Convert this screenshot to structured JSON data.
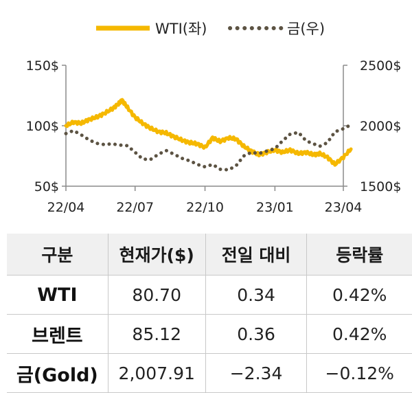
{
  "chart_data": {
    "type": "line",
    "x_ticks": [
      "22/04",
      "22/07",
      "22/10",
      "23/01",
      "23/04"
    ],
    "y_left": {
      "ticks": [
        "150$",
        "100$",
        "50$"
      ],
      "ylim": [
        50,
        150
      ]
    },
    "y_right": {
      "ticks": [
        "2500$",
        "2000$",
        "1500$"
      ],
      "ylim": [
        1500,
        2500
      ]
    },
    "legend_position": "top",
    "grid": false,
    "series": [
      {
        "name": "WTI(좌)",
        "axis": "left",
        "color": "#f5b800",
        "style": "solid",
        "x": [
          "2022-04-01",
          "2022-04-11",
          "2022-04-21",
          "2022-05-01",
          "2022-05-11",
          "2022-05-21",
          "2022-06-01",
          "2022-06-09",
          "2022-06-14",
          "2022-06-21",
          "2022-07-01",
          "2022-07-11",
          "2022-07-21",
          "2022-08-01",
          "2022-08-11",
          "2022-08-21",
          "2022-09-01",
          "2022-09-11",
          "2022-09-21",
          "2022-10-01",
          "2022-10-11",
          "2022-10-21",
          "2022-11-01",
          "2022-11-11",
          "2022-11-21",
          "2022-12-01",
          "2022-12-11",
          "2022-12-21",
          "2023-01-01",
          "2023-01-11",
          "2023-01-21",
          "2023-02-01",
          "2023-02-11",
          "2023-02-21",
          "2023-03-01",
          "2023-03-11",
          "2023-03-21",
          "2023-04-01",
          "2023-04-11"
        ],
        "values": [
          100,
          103,
          102,
          105,
          107,
          110,
          114,
          118,
          121,
          115,
          107,
          102,
          98,
          95,
          94,
          91,
          88,
          86,
          85,
          82,
          90,
          87,
          90,
          89,
          83,
          79,
          76,
          78,
          80,
          78,
          80,
          77,
          78,
          76,
          77,
          74,
          68,
          74,
          80.7
        ]
      },
      {
        "name": "금(우)",
        "axis": "right",
        "color": "#5c5343",
        "style": "dotted",
        "x": [
          "2022-04-01",
          "2022-04-11",
          "2022-04-21",
          "2022-05-01",
          "2022-05-11",
          "2022-05-21",
          "2022-06-01",
          "2022-06-11",
          "2022-06-21",
          "2022-07-01",
          "2022-07-11",
          "2022-07-21",
          "2022-08-01",
          "2022-08-11",
          "2022-08-21",
          "2022-09-01",
          "2022-09-11",
          "2022-09-21",
          "2022-10-01",
          "2022-10-11",
          "2022-10-21",
          "2022-11-01",
          "2022-11-11",
          "2022-11-21",
          "2022-12-01",
          "2022-12-11",
          "2022-12-21",
          "2023-01-01",
          "2023-01-11",
          "2023-01-21",
          "2023-02-01",
          "2023-02-11",
          "2023-02-21",
          "2023-03-01",
          "2023-03-11",
          "2023-03-21",
          "2023-04-01",
          "2023-04-11"
        ],
        "values": [
          1935,
          1960,
          1925,
          1885,
          1855,
          1845,
          1850,
          1840,
          1835,
          1780,
          1725,
          1720,
          1765,
          1795,
          1765,
          1730,
          1710,
          1680,
          1660,
          1680,
          1640,
          1635,
          1670,
          1750,
          1780,
          1770,
          1790,
          1810,
          1875,
          1930,
          1945,
          1875,
          1850,
          1830,
          1860,
          1950,
          1975,
          2007.91
        ]
      }
    ]
  },
  "table": {
    "headers": [
      "구분",
      "현재가($)",
      "전일 대비",
      "등락률"
    ],
    "rows": [
      [
        "WTI",
        "80.70",
        "0.34",
        "0.42%"
      ],
      [
        "브렌트",
        "85.12",
        "0.36",
        "0.42%"
      ],
      [
        "금(Gold)",
        "2,007.91",
        "−2.34",
        "−0.12%"
      ]
    ]
  }
}
